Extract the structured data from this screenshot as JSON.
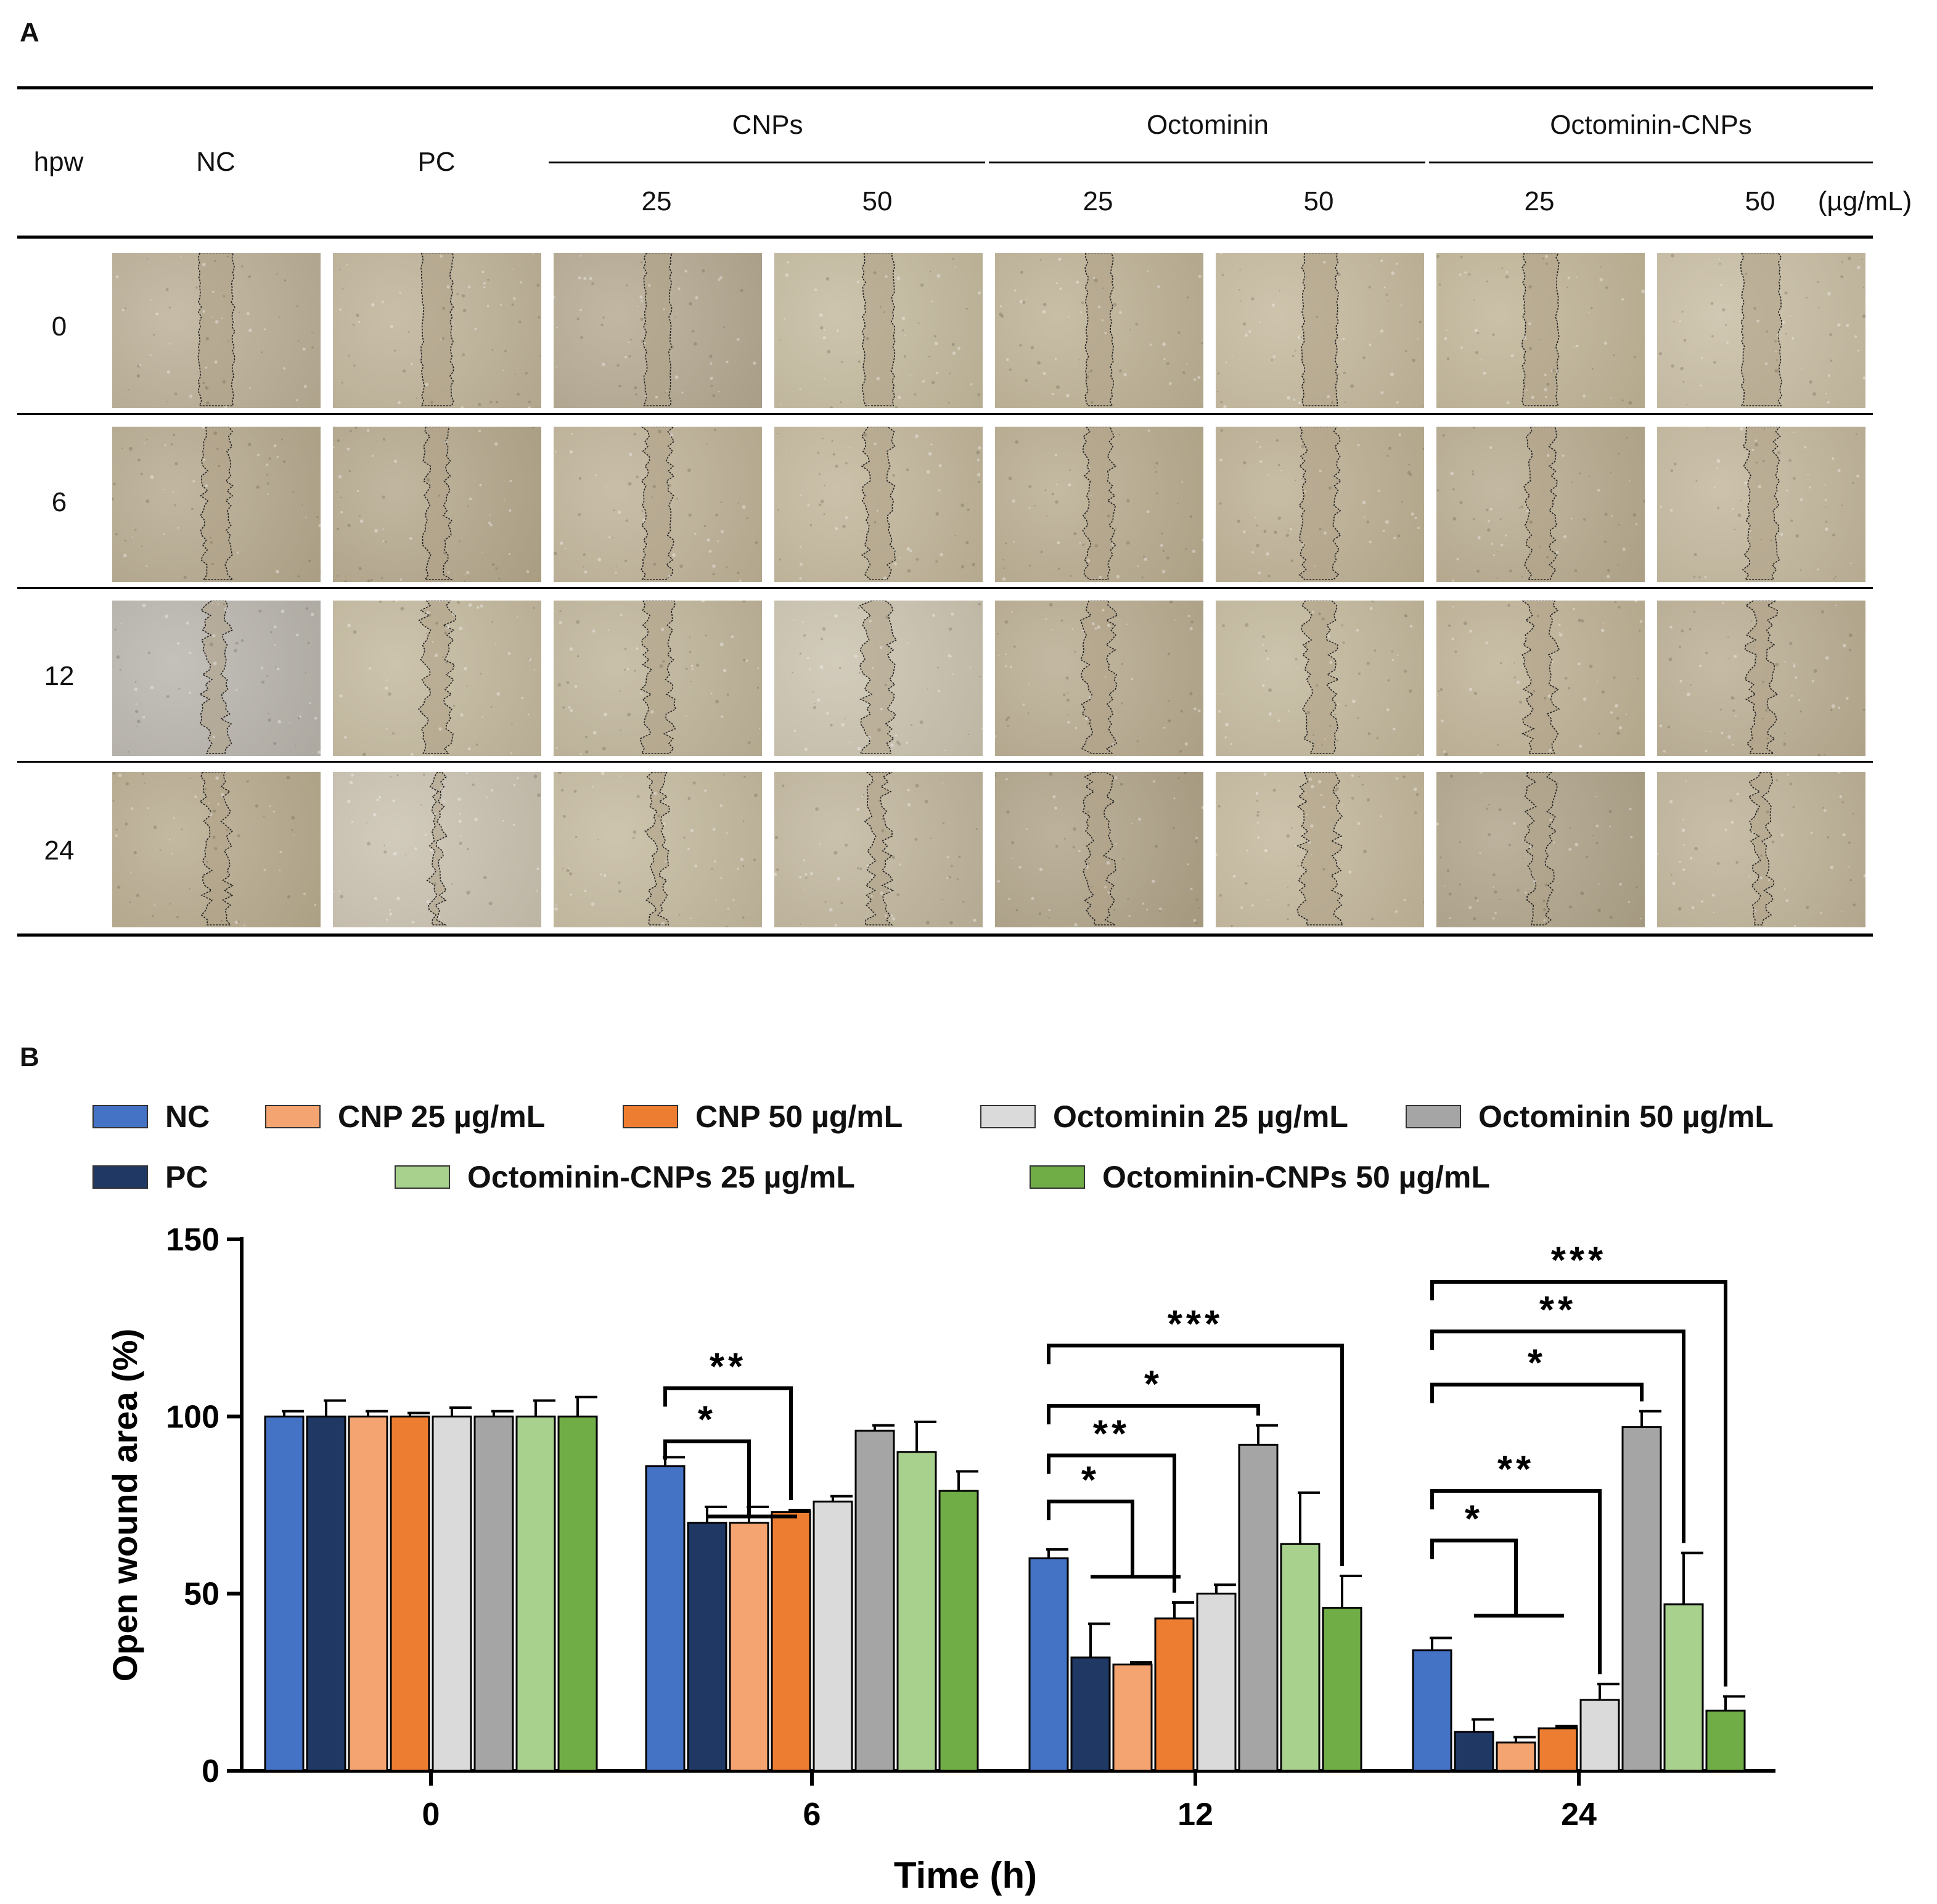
{
  "panel_a": {
    "label": "A",
    "header": {
      "hpw": "hpw",
      "nc": "NC",
      "pc": "PC",
      "groups": [
        {
          "name": "CNPs",
          "concs": [
            "25",
            "50"
          ]
        },
        {
          "name": "Octominin",
          "concs": [
            "25",
            "50"
          ]
        },
        {
          "name": "Octominin-CNPs",
          "concs": [
            "25",
            "50"
          ]
        }
      ],
      "unit": "(µg/mL)"
    },
    "rows": [
      "0",
      "6",
      "12",
      "24"
    ],
    "image_tints": [
      [
        "#b9ad94",
        "#bdb196",
        "#b3a78f",
        "#c2b89c",
        "#bcb093",
        "#c3b79b",
        "#bfb395",
        "#c7bca2"
      ],
      [
        "#b4a78c",
        "#b3a68a",
        "#bdb095",
        "#c0b498",
        "#b7aa8d",
        "#bbae91",
        "#b6a98d",
        "#c1b59a"
      ],
      [
        "#b7b3ab",
        "#c2b79c",
        "#beb398",
        "#c9c1ad",
        "#b6a98d",
        "#c1b69a",
        "#bdb093",
        "#b9ac91"
      ],
      [
        "#b6a98c",
        "#c8c0ae",
        "#c3b89d",
        "#bfb49b",
        "#aea186",
        "#c2b69a",
        "#aea288",
        "#bdb196"
      ]
    ],
    "wound_widths": [
      [
        0.16,
        0.14,
        0.12,
        0.14,
        0.12,
        0.16,
        0.16,
        0.18
      ],
      [
        0.12,
        0.1,
        0.12,
        0.12,
        0.12,
        0.16,
        0.12,
        0.14
      ],
      [
        0.1,
        0.12,
        0.12,
        0.12,
        0.12,
        0.12,
        0.12,
        0.1
      ],
      [
        0.1,
        0.04,
        0.06,
        0.08,
        0.1,
        0.16,
        0.1,
        0.06
      ]
    ]
  },
  "panel_b": {
    "label": "B"
  },
  "chart_data": {
    "type": "bar",
    "title": "",
    "xlabel": "Time (h)",
    "ylabel": "Open wound area (%)",
    "ylim": [
      0,
      150
    ],
    "yticks": [
      "0",
      "50",
      "100",
      "150"
    ],
    "categories": [
      "0",
      "6",
      "12",
      "24"
    ],
    "series": [
      {
        "name": "NC",
        "color": "#4472c4",
        "values": [
          100,
          86,
          60,
          34
        ],
        "errors": [
          1.5,
          2.5,
          2.5,
          3.5
        ]
      },
      {
        "name": "PC",
        "color": "#1f3864",
        "values": [
          100,
          70,
          32,
          11
        ],
        "errors": [
          4.5,
          4.5,
          9.5,
          3.5
        ]
      },
      {
        "name": "CNP 25 µg/mL",
        "color": "#f4a470",
        "values": [
          100,
          70,
          30,
          8
        ],
        "errors": [
          1.5,
          4.5,
          0.6,
          1.5
        ]
      },
      {
        "name": "CNP 50 µg/mL",
        "color": "#ed7d31",
        "values": [
          100,
          73,
          43,
          12
        ],
        "errors": [
          1,
          0.6,
          4.5,
          0.6
        ]
      },
      {
        "name": "Octominin 25 µg/mL",
        "color": "#dadada",
        "values": [
          100,
          76,
          50,
          20
        ],
        "errors": [
          2.5,
          1.5,
          2.5,
          4.5
        ]
      },
      {
        "name": "Octominin 50 µg/mL",
        "color": "#a5a5a5",
        "values": [
          100,
          96,
          92,
          97
        ],
        "errors": [
          1.5,
          1.5,
          5.5,
          4.5
        ]
      },
      {
        "name": "Octominin-CNPs 25 µg/mL",
        "color": "#a9d18e",
        "values": [
          100,
          90,
          64,
          47
        ],
        "errors": [
          4.5,
          8.5,
          14.5,
          14.5
        ]
      },
      {
        "name": "Octominin-CNPs 50 µg/mL",
        "color": "#70ad47",
        "values": [
          100,
          79,
          46,
          17
        ],
        "errors": [
          5.5,
          5.5,
          9,
          4
        ]
      }
    ],
    "legend": {
      "rows": [
        [
          "NC",
          "CNP 25 µg/mL",
          "CNP 50 µg/mL",
          "Octominin 25 µg/mL",
          "Octominin 50 µg/mL"
        ],
        [
          "PC",
          "Octominin-CNPs 25 µg/mL",
          "Octominin-CNPs 50 µg/mL"
        ]
      ]
    },
    "significance": [
      {
        "group": 1,
        "from": 0,
        "to": 3,
        "y": 108,
        "label": "**"
      },
      {
        "group": 1,
        "from": 0,
        "to": 2,
        "y": 93,
        "label": "*",
        "bracket_to_group_center": true
      },
      {
        "group": 2,
        "from": 0,
        "to": 7,
        "y": 120,
        "label": "***"
      },
      {
        "group": 2,
        "from": 0,
        "to": 5,
        "y": 103,
        "label": "*"
      },
      {
        "group": 2,
        "from": 0,
        "to": 3,
        "y": 89,
        "label": "**"
      },
      {
        "group": 2,
        "from": 0,
        "to": 2,
        "y": 76,
        "label": "*",
        "bracket_to_group_center": true
      },
      {
        "group": 3,
        "from": 0,
        "to": 7,
        "y": 138,
        "label": "***"
      },
      {
        "group": 3,
        "from": 0,
        "to": 6,
        "y": 124,
        "label": "**"
      },
      {
        "group": 3,
        "from": 0,
        "to": 5,
        "y": 109,
        "label": "*"
      },
      {
        "group": 3,
        "from": 0,
        "to": 4,
        "y": 79,
        "label": "**"
      },
      {
        "group": 3,
        "from": 0,
        "to": 2,
        "y": 65,
        "label": "*",
        "bracket_to_group_center": true
      }
    ]
  }
}
